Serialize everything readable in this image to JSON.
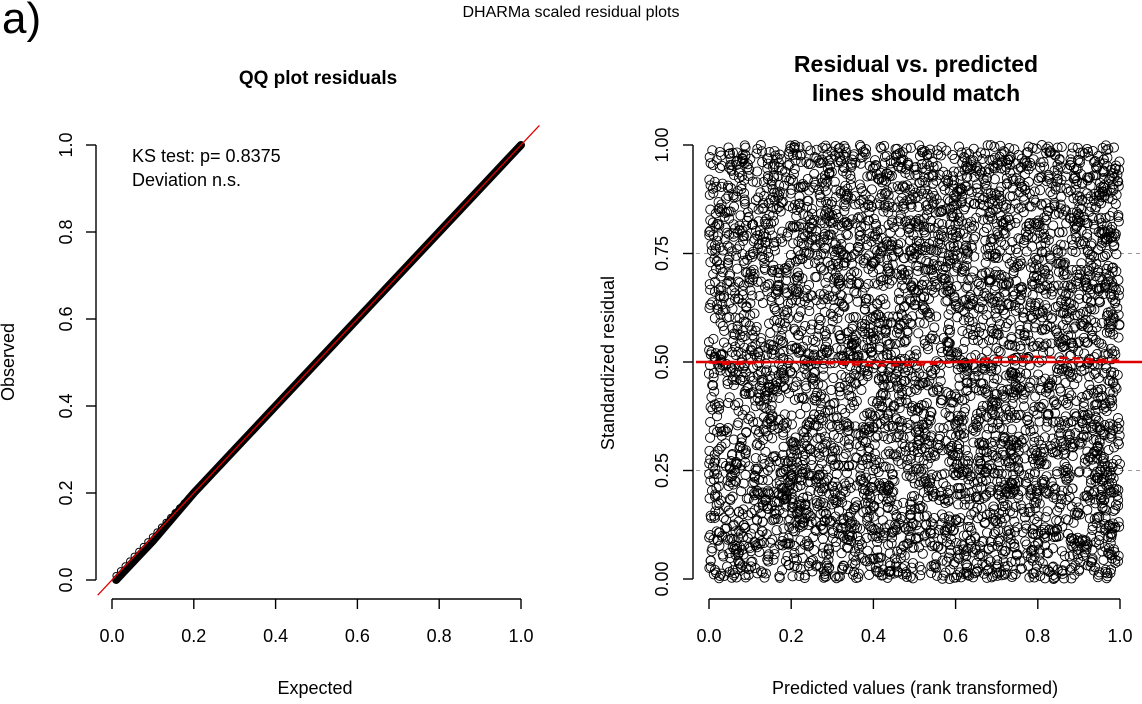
{
  "figure": {
    "panel_tag": "a)",
    "main_title": "DHARMa scaled residual plots"
  },
  "colors": {
    "axis": "#000000",
    "ref_line": "#e00000",
    "points": "#000000",
    "grid": "#9a9a9a"
  },
  "chart_data": [
    {
      "type": "scatter",
      "title": "QQ plot residuals",
      "xlabel": "Expected",
      "ylabel": "Observed",
      "xlim": [
        0,
        1
      ],
      "ylim": [
        0,
        1
      ],
      "xticks": [
        "0.0",
        "0.2",
        "0.4",
        "0.6",
        "0.8",
        "1.0"
      ],
      "xtick_values": [
        0,
        0.2,
        0.4,
        0.6,
        0.8,
        1.0
      ],
      "yticks": [
        "0.0",
        "0.2",
        "0.4",
        "0.6",
        "0.8",
        "1.0"
      ],
      "ytick_values": [
        0,
        0.2,
        0.4,
        0.6,
        0.8,
        1.0
      ],
      "series": [
        {
          "x": [
            0.01,
            0.05,
            0.1,
            0.2,
            0.3,
            0.4,
            0.5,
            0.6,
            0.7,
            0.8,
            0.9,
            1.0
          ],
          "y": [
            0.0,
            0.04,
            0.09,
            0.2,
            0.3,
            0.4,
            0.5,
            0.6,
            0.7,
            0.8,
            0.9,
            1.0
          ]
        }
      ],
      "reference_line": {
        "intercept": 0,
        "slope": 1
      },
      "annotations": [
        "KS test: p= 0.8375",
        "Deviation  n.s."
      ]
    },
    {
      "type": "scatter",
      "title_lines": [
        "Residual vs. predicted",
        "lines should match"
      ],
      "xlabel": "Predicted values (rank transformed)",
      "ylabel": "Standardized residual",
      "xlim": [
        0,
        1
      ],
      "ylim": [
        0,
        1
      ],
      "xticks": [
        "0.0",
        "0.2",
        "0.4",
        "0.6",
        "0.8",
        "1.0"
      ],
      "xtick_values": [
        0,
        0.2,
        0.4,
        0.6,
        0.8,
        1.0
      ],
      "yticks": [
        "0.00",
        "0.25",
        "0.50",
        "0.75",
        "1.00"
      ],
      "ytick_values": [
        0,
        0.25,
        0.5,
        0.75,
        1.0
      ],
      "grid_y": [
        0.25,
        0.5,
        0.75
      ],
      "point_cloud": {
        "distribution": "uniform",
        "x_range": [
          0,
          1
        ],
        "y_range": [
          0,
          1
        ]
      },
      "reference_line": {
        "y": 0.5
      },
      "smooth_line": {
        "x": [
          0.0,
          0.05,
          0.1,
          0.15,
          0.2,
          0.3,
          0.4,
          0.5,
          0.55,
          0.6,
          0.65,
          0.7,
          0.75,
          0.8,
          0.85,
          0.9,
          0.95,
          1.0
        ],
        "y": [
          0.499,
          0.495,
          0.497,
          0.5,
          0.5,
          0.497,
          0.492,
          0.493,
          0.496,
          0.5,
          0.505,
          0.51,
          0.513,
          0.512,
          0.51,
          0.508,
          0.505,
          0.503
        ]
      },
      "grid": true
    }
  ]
}
